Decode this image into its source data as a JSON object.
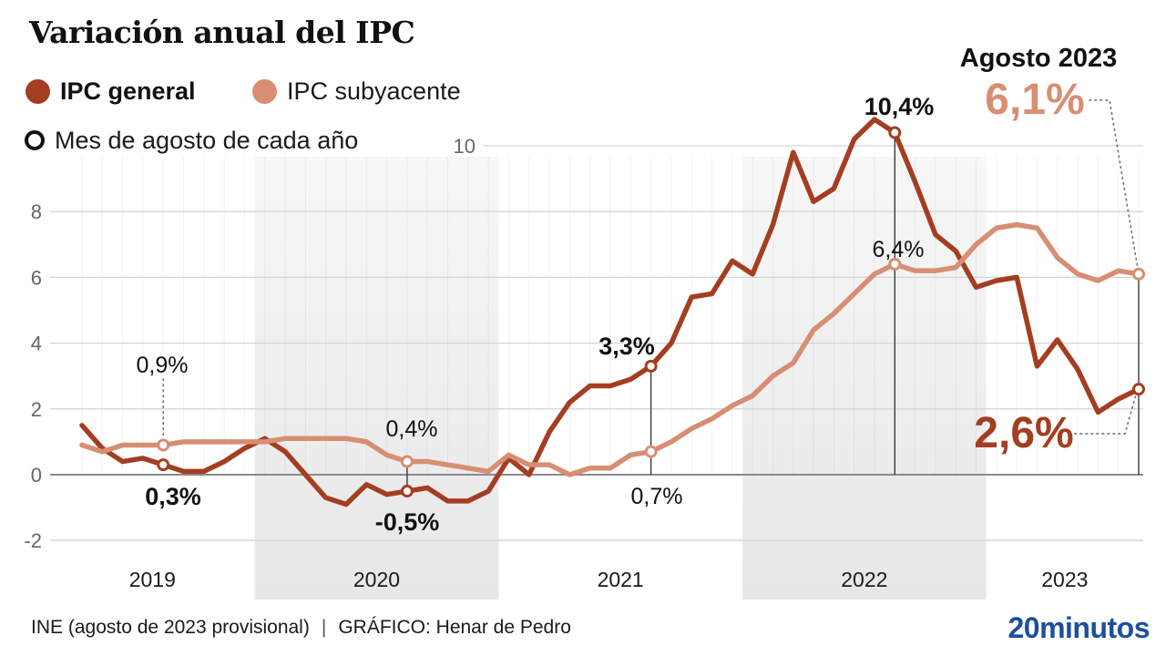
{
  "header": {
    "title": "Variación anual del IPC",
    "legend": [
      {
        "label": "IPC general",
        "color": "#a43e21"
      },
      {
        "label": "IPC subyacente",
        "color": "#d78e73"
      }
    ],
    "legend_note": "Mes de agosto de cada año"
  },
  "callout": {
    "title": "Agosto 2023",
    "subyacente_value": "6,1%",
    "general_value": "2,6%"
  },
  "footer": {
    "source": "INE (agosto de 2023 provisional)",
    "separator": "|",
    "credit": "GRÁFICO: Henar de Pedro",
    "logo": {
      "prefix": "20",
      "suffix": "minutos",
      "color": "#1d4f9e"
    }
  },
  "chart_data": {
    "type": "line",
    "unit": "%",
    "frequency": "monthly",
    "months": [
      "2019-04",
      "2019-05",
      "2019-06",
      "2019-07",
      "2019-08",
      "2019-09",
      "2019-10",
      "2019-11",
      "2019-12",
      "2020-01",
      "2020-02",
      "2020-03",
      "2020-04",
      "2020-05",
      "2020-06",
      "2020-07",
      "2020-08",
      "2020-09",
      "2020-10",
      "2020-11",
      "2020-12",
      "2021-01",
      "2021-02",
      "2021-03",
      "2021-04",
      "2021-05",
      "2021-06",
      "2021-07",
      "2021-08",
      "2021-09",
      "2021-10",
      "2021-11",
      "2021-12",
      "2022-01",
      "2022-02",
      "2022-03",
      "2022-04",
      "2022-05",
      "2022-06",
      "2022-07",
      "2022-08",
      "2022-09",
      "2022-10",
      "2022-11",
      "2022-12",
      "2023-01",
      "2023-02",
      "2023-03",
      "2023-04",
      "2023-05",
      "2023-06",
      "2023-07",
      "2023-08"
    ],
    "series": [
      {
        "name": "IPC general",
        "color": "#a43e21",
        "values": [
          1.5,
          0.8,
          0.4,
          0.5,
          0.3,
          0.1,
          0.1,
          0.4,
          0.8,
          1.1,
          0.7,
          0.0,
          -0.7,
          -0.9,
          -0.3,
          -0.6,
          -0.5,
          -0.4,
          -0.8,
          -0.8,
          -0.5,
          0.5,
          0.0,
          1.3,
          2.2,
          2.7,
          2.7,
          2.9,
          3.3,
          4.0,
          5.4,
          5.5,
          6.5,
          6.1,
          7.6,
          9.8,
          8.3,
          8.7,
          10.2,
          10.8,
          10.4,
          8.9,
          7.3,
          6.8,
          5.7,
          5.9,
          6.0,
          3.3,
          4.1,
          3.2,
          1.9,
          2.3,
          2.6
        ]
      },
      {
        "name": "IPC subyacente",
        "color": "#d78e73",
        "values": [
          0.9,
          0.7,
          0.9,
          0.9,
          0.9,
          1.0,
          1.0,
          1.0,
          1.0,
          1.0,
          1.1,
          1.1,
          1.1,
          1.1,
          1.0,
          0.6,
          0.4,
          0.4,
          0.3,
          0.2,
          0.1,
          0.6,
          0.3,
          0.3,
          0.0,
          0.2,
          0.2,
          0.6,
          0.7,
          1.0,
          1.4,
          1.7,
          2.1,
          2.4,
          3.0,
          3.4,
          4.4,
          4.9,
          5.5,
          6.1,
          6.4,
          6.2,
          6.2,
          6.3,
          7.0,
          7.5,
          7.6,
          7.5,
          6.6,
          6.1,
          5.9,
          6.2,
          6.1
        ]
      }
    ],
    "august_indices": [
      4,
      16,
      28,
      40,
      52
    ],
    "annotations": [
      {
        "id": "s-2019",
        "series": "IPC subyacente",
        "month": "2019-08",
        "label": "0,9%"
      },
      {
        "id": "g-2019",
        "series": "IPC general",
        "month": "2019-08",
        "label": "0,3%"
      },
      {
        "id": "s-2020",
        "series": "IPC subyacente",
        "month": "2020-08",
        "label": "0,4%"
      },
      {
        "id": "g-2020",
        "series": "IPC general",
        "month": "2020-08",
        "label": "-0,5%"
      },
      {
        "id": "g-2021",
        "series": "IPC general",
        "month": "2021-08",
        "label": "3,3%"
      },
      {
        "id": "s-2021",
        "series": "IPC subyacente",
        "month": "2021-08",
        "label": "0,7%"
      },
      {
        "id": "g-2022",
        "series": "IPC general",
        "month": "2022-08",
        "label": "10,4%"
      },
      {
        "id": "s-2022",
        "series": "IPC subyacente",
        "month": "2022-08",
        "label": "6,4%"
      }
    ],
    "y_axis": {
      "ticks": [
        10,
        8,
        6,
        4,
        2,
        0,
        -2
      ],
      "min": -2,
      "max": 10.8,
      "grid": true
    },
    "x_axis": {
      "years": [
        "2019",
        "2020",
        "2021",
        "2022",
        "2023"
      ],
      "shaded_years": [
        "2020",
        "2022"
      ]
    },
    "legend_position": "top-left"
  }
}
